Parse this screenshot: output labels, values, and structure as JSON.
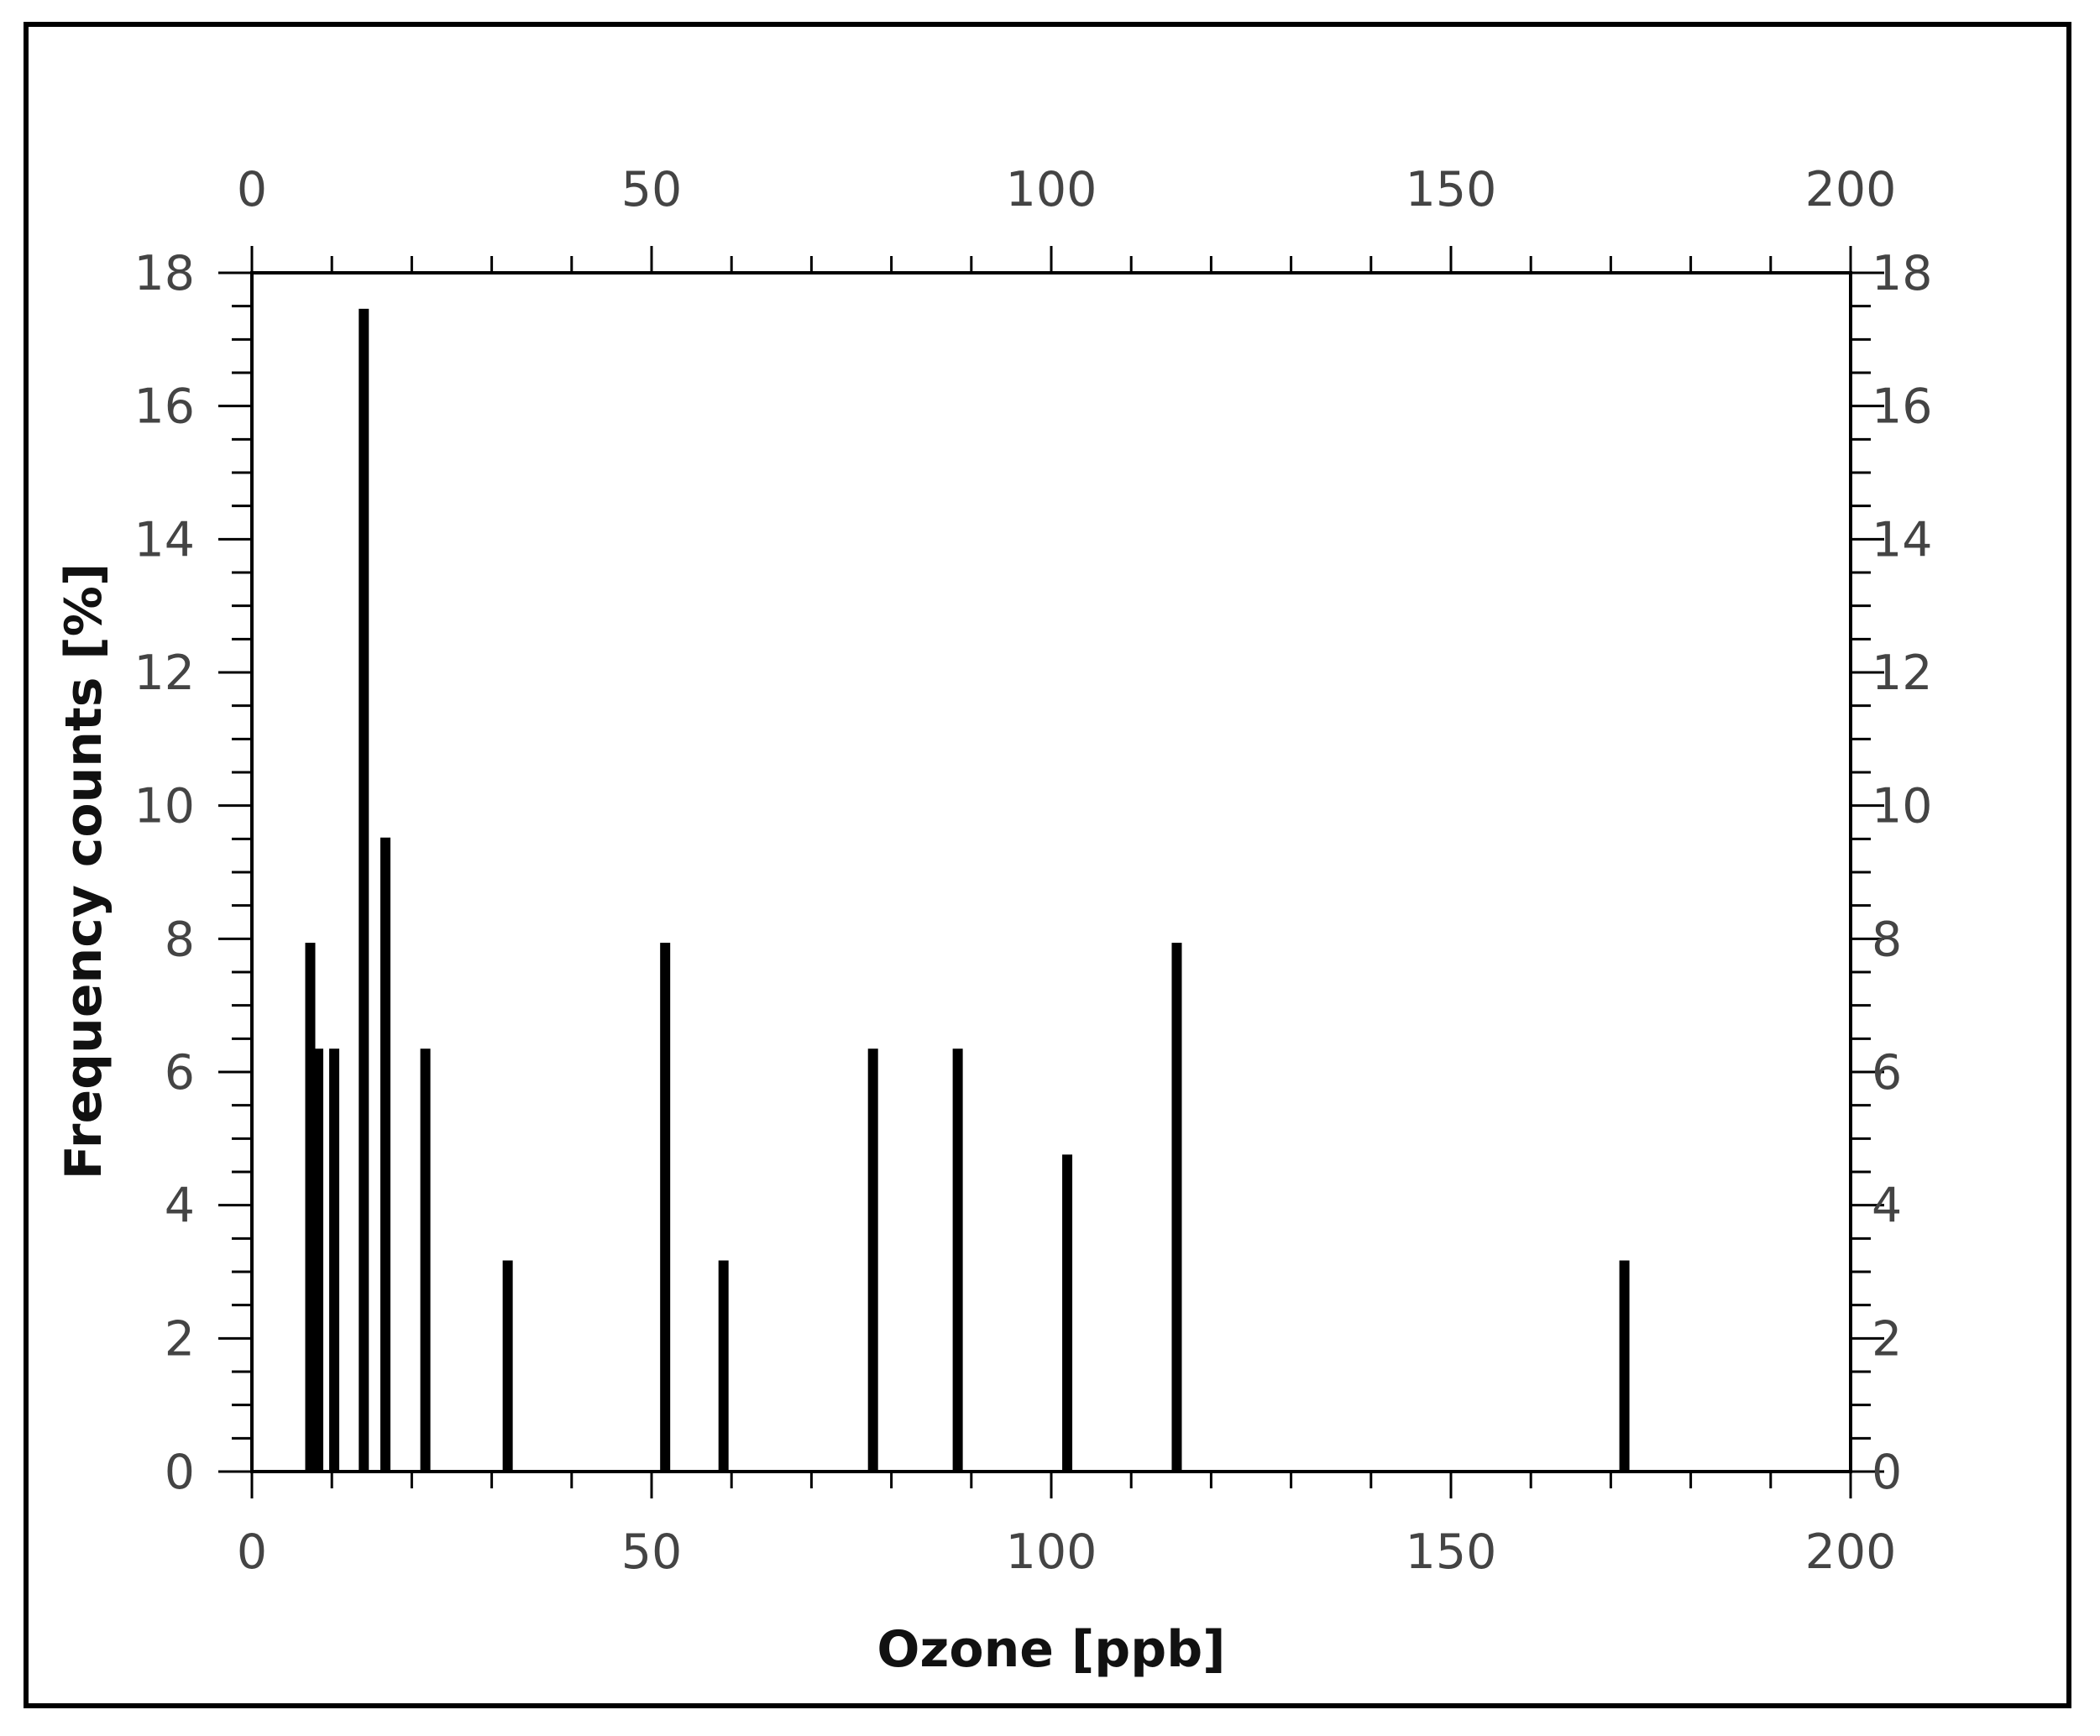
{
  "chart_data": {
    "type": "bar",
    "title": "",
    "xlabel": "Ozone [ppb]",
    "ylabel": "Frequency counts [%]",
    "xlim": [
      0,
      200
    ],
    "ylim": [
      0,
      18
    ],
    "x_ticks": [
      0,
      50,
      100,
      150,
      200
    ],
    "x_tick_labels": [
      "0",
      "50",
      "100",
      "150",
      "200"
    ],
    "y_ticks": [
      0,
      2,
      4,
      6,
      8,
      10,
      12,
      14,
      16,
      18
    ],
    "y_tick_labels": [
      "0",
      "2",
      "4",
      "6",
      "8",
      "10",
      "12",
      "14",
      "16",
      "18"
    ],
    "grid": false,
    "mirrored_axes": true,
    "bar_color": "#000000",
    "x": [
      7.3,
      8.3,
      10.3,
      14.0,
      16.7,
      21.7,
      32.0,
      51.7,
      59.0,
      77.7,
      88.3,
      102.0,
      115.7,
      171.7
    ],
    "values": [
      7.94,
      6.35,
      6.35,
      17.46,
      9.52,
      6.35,
      3.17,
      7.94,
      3.17,
      6.35,
      6.35,
      4.76,
      7.94,
      3.17
    ]
  }
}
